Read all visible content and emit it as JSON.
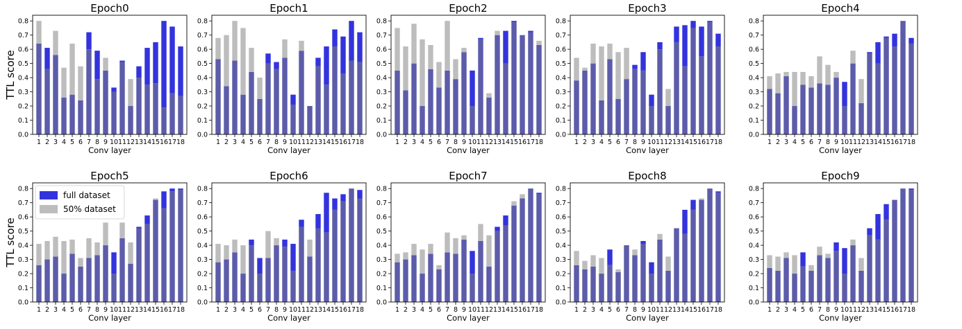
{
  "chart_data": {
    "type": "bar",
    "layout": "2x5 grid of overlapping bar charts",
    "ylabel": "TTL score",
    "xlabel": "Conv layer",
    "ylim": [
      0,
      0.84
    ],
    "yticks": [
      0.0,
      0.1,
      0.2,
      0.3,
      0.4,
      0.5,
      0.6,
      0.7,
      0.8
    ],
    "categories": [
      "1",
      "2",
      "3",
      "4",
      "5",
      "6",
      "7",
      "8",
      "9",
      "10",
      "11",
      "12",
      "13",
      "14",
      "15",
      "16",
      "17",
      "18"
    ],
    "legend": {
      "placement": "upper-left of Epoch5",
      "entries": [
        {
          "label": "full dataset",
          "color": "#3333dd"
        },
        {
          "label": "50% dataset",
          "color": "#bdbdbd"
        }
      ]
    },
    "colors": {
      "full": "#3333dd",
      "half": "#bdbdbd",
      "overlap": "#5c5caa"
    },
    "panels": [
      {
        "title": "Epoch0",
        "full": [
          0.64,
          0.61,
          0.56,
          0.26,
          0.28,
          0.24,
          0.72,
          0.59,
          0.45,
          0.33,
          0.52,
          0.2,
          0.48,
          0.61,
          0.65,
          0.8,
          0.76,
          0.62
        ],
        "half": [
          0.8,
          0.46,
          0.73,
          0.47,
          0.64,
          0.48,
          0.6,
          0.39,
          0.54,
          0.3,
          0.51,
          0.39,
          0.4,
          0.35,
          0.36,
          0.19,
          0.29,
          0.27
        ]
      },
      {
        "title": "Epoch1",
        "full": [
          0.53,
          0.34,
          0.52,
          0.28,
          0.44,
          0.25,
          0.57,
          0.51,
          0.54,
          0.28,
          0.59,
          0.2,
          0.54,
          0.62,
          0.74,
          0.69,
          0.8,
          0.72
        ],
        "half": [
          0.68,
          0.7,
          0.8,
          0.75,
          0.61,
          0.4,
          0.5,
          0.46,
          0.67,
          0.21,
          0.66,
          0.2,
          0.48,
          0.35,
          0.62,
          0.43,
          0.52,
          0.51
        ]
      },
      {
        "title": "Epoch2",
        "full": [
          0.45,
          0.31,
          0.5,
          0.2,
          0.46,
          0.33,
          0.45,
          0.39,
          0.58,
          0.45,
          0.68,
          0.26,
          0.7,
          0.73,
          0.8,
          0.7,
          0.73,
          0.63
        ],
        "half": [
          0.75,
          0.62,
          0.78,
          0.67,
          0.63,
          0.51,
          0.8,
          0.53,
          0.61,
          0.2,
          0.67,
          0.29,
          0.73,
          0.5,
          0.79,
          0.7,
          0.72,
          0.66
        ]
      },
      {
        "title": "Epoch3",
        "full": [
          0.38,
          0.45,
          0.5,
          0.24,
          0.53,
          0.25,
          0.39,
          0.49,
          0.58,
          0.28,
          0.65,
          0.2,
          0.76,
          0.77,
          0.8,
          0.76,
          0.8,
          0.71
        ],
        "half": [
          0.54,
          0.47,
          0.64,
          0.62,
          0.64,
          0.58,
          0.61,
          0.46,
          0.45,
          0.2,
          0.6,
          0.32,
          0.65,
          0.48,
          0.75,
          0.55,
          0.79,
          0.62
        ]
      },
      {
        "title": "Epoch4",
        "full": [
          0.32,
          0.29,
          0.41,
          0.2,
          0.35,
          0.33,
          0.36,
          0.35,
          0.4,
          0.37,
          0.5,
          0.22,
          0.58,
          0.65,
          0.69,
          0.71,
          0.8,
          0.68
        ],
        "half": [
          0.41,
          0.43,
          0.44,
          0.44,
          0.44,
          0.41,
          0.55,
          0.49,
          0.44,
          0.2,
          0.59,
          0.39,
          0.57,
          0.5,
          0.68,
          0.62,
          0.8,
          0.64
        ]
      },
      {
        "title": "Epoch5",
        "full": [
          0.26,
          0.3,
          0.32,
          0.2,
          0.34,
          0.25,
          0.31,
          0.33,
          0.4,
          0.35,
          0.45,
          0.27,
          0.53,
          0.61,
          0.72,
          0.78,
          0.8,
          0.8
        ],
        "half": [
          0.41,
          0.43,
          0.46,
          0.43,
          0.44,
          0.31,
          0.45,
          0.42,
          0.56,
          0.2,
          0.56,
          0.42,
          0.52,
          0.55,
          0.73,
          0.66,
          0.78,
          0.79
        ]
      },
      {
        "title": "Epoch6",
        "full": [
          0.28,
          0.3,
          0.35,
          0.2,
          0.44,
          0.31,
          0.31,
          0.4,
          0.44,
          0.41,
          0.58,
          0.32,
          0.62,
          0.77,
          0.73,
          0.76,
          0.8,
          0.79
        ],
        "half": [
          0.41,
          0.4,
          0.44,
          0.4,
          0.4,
          0.2,
          0.5,
          0.45,
          0.39,
          0.22,
          0.53,
          0.44,
          0.52,
          0.49,
          0.65,
          0.71,
          0.8,
          0.73
        ]
      },
      {
        "title": "Epoch7",
        "full": [
          0.28,
          0.3,
          0.33,
          0.2,
          0.34,
          0.23,
          0.35,
          0.34,
          0.44,
          0.36,
          0.43,
          0.25,
          0.53,
          0.61,
          0.68,
          0.73,
          0.8,
          0.77
        ],
        "half": [
          0.34,
          0.35,
          0.41,
          0.37,
          0.41,
          0.26,
          0.49,
          0.45,
          0.47,
          0.2,
          0.55,
          0.47,
          0.5,
          0.54,
          0.71,
          0.76,
          0.8,
          0.76
        ]
      },
      {
        "title": "Epoch8",
        "full": [
          0.26,
          0.23,
          0.25,
          0.2,
          0.37,
          0.21,
          0.4,
          0.33,
          0.43,
          0.28,
          0.44,
          0.22,
          0.52,
          0.65,
          0.72,
          0.72,
          0.8,
          0.78
        ],
        "half": [
          0.36,
          0.29,
          0.33,
          0.31,
          0.26,
          0.23,
          0.4,
          0.37,
          0.41,
          0.2,
          0.48,
          0.32,
          0.52,
          0.48,
          0.65,
          0.73,
          0.8,
          0.77
        ]
      },
      {
        "title": "Epoch9",
        "full": [
          0.24,
          0.22,
          0.31,
          0.2,
          0.35,
          0.22,
          0.33,
          0.31,
          0.42,
          0.38,
          0.4,
          0.22,
          0.52,
          0.62,
          0.69,
          0.72,
          0.8,
          0.8
        ],
        "half": [
          0.33,
          0.32,
          0.35,
          0.33,
          0.25,
          0.26,
          0.39,
          0.34,
          0.36,
          0.2,
          0.44,
          0.31,
          0.47,
          0.44,
          0.58,
          0.72,
          0.8,
          0.79
        ]
      }
    ]
  }
}
